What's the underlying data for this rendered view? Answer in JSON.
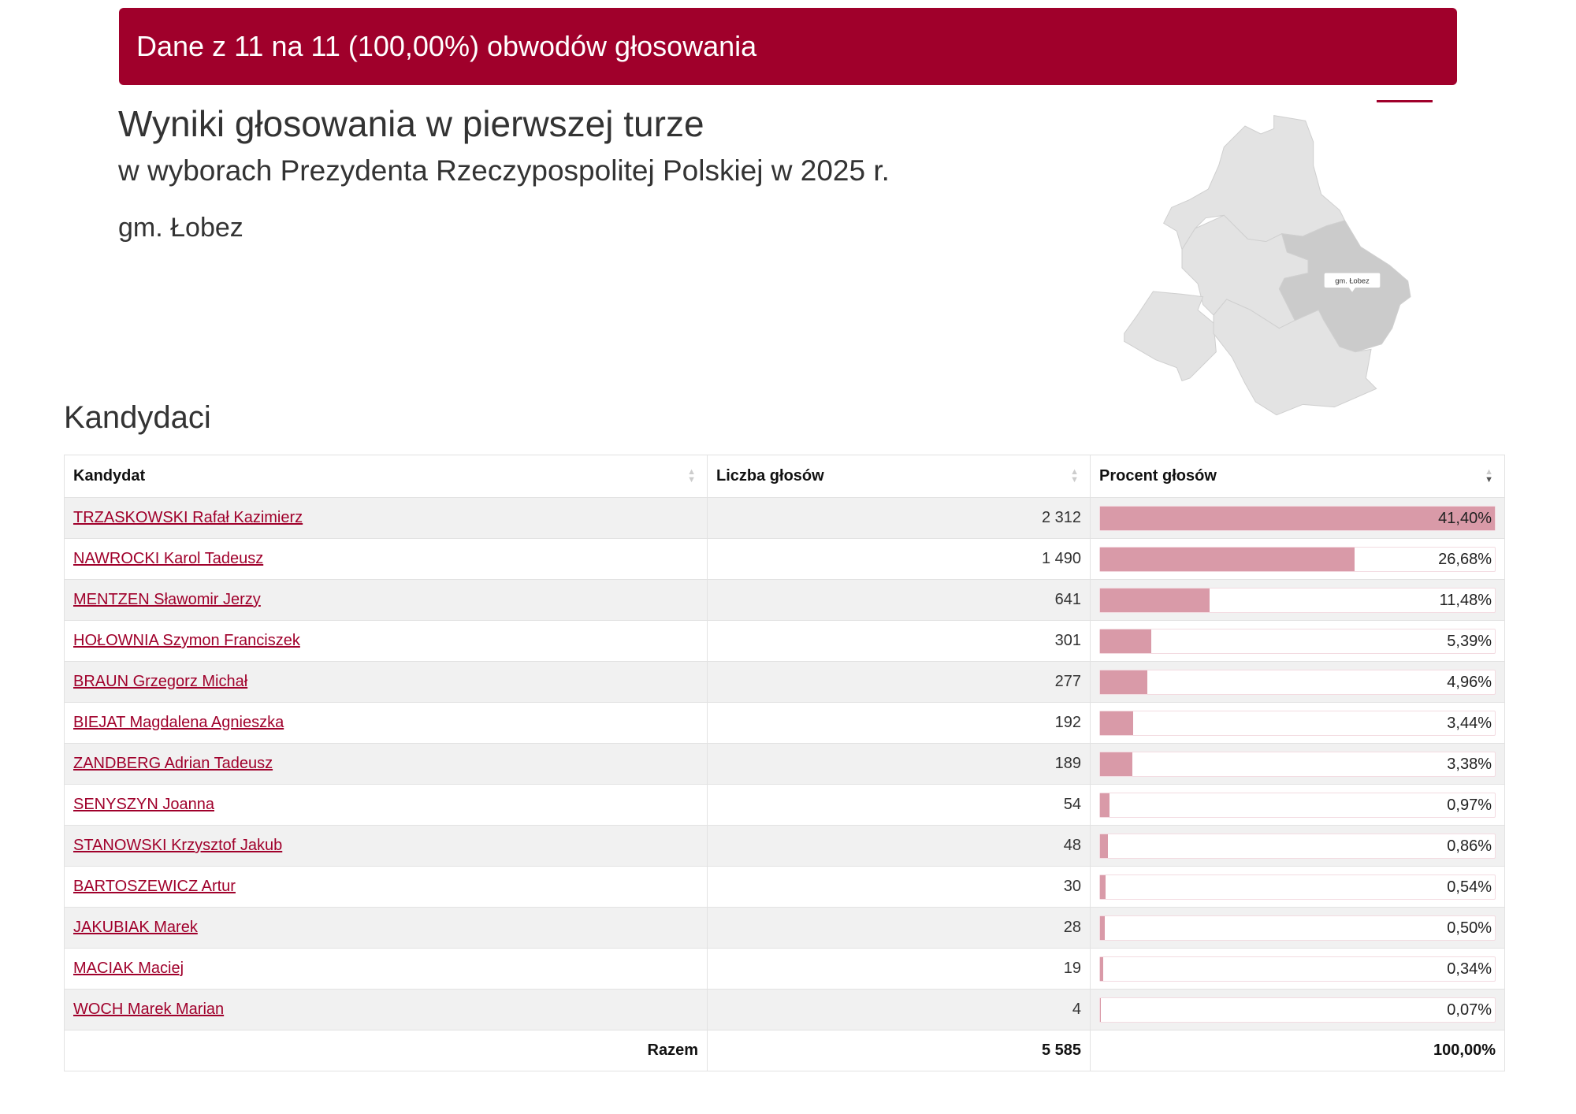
{
  "banner": {
    "text": "Dane z 11 na 11 (100,00%) obwodów głosowania",
    "color": "#a0002b"
  },
  "header": {
    "title": "Wyniki głosowania w pierwszej turze",
    "subtitle": "w wyborach Prezydenta Rzeczypospolitej Polskiej w 2025 r.",
    "area": "gm. Łobez"
  },
  "map": {
    "tooltip": "gm. Łobez",
    "highlighted": "gm. Łobez"
  },
  "section_title": "Kandydaci",
  "table": {
    "columns": [
      "Kandydat",
      "Liczba głosów",
      "Procent głosów"
    ],
    "sorted_column": "Procent głosów",
    "sort_direction": "descending",
    "rows": [
      {
        "name": "TRZASKOWSKI Rafał Kazimierz",
        "votes": "2 312",
        "percent": "41,40%",
        "pct": 41.4
      },
      {
        "name": "NAWROCKI Karol Tadeusz",
        "votes": "1 490",
        "percent": "26,68%",
        "pct": 26.68
      },
      {
        "name": "MENTZEN Sławomir Jerzy",
        "votes": "641",
        "percent": "11,48%",
        "pct": 11.48
      },
      {
        "name": "HOŁOWNIA Szymon Franciszek",
        "votes": "301",
        "percent": "5,39%",
        "pct": 5.39
      },
      {
        "name": "BRAUN Grzegorz Michał",
        "votes": "277",
        "percent": "4,96%",
        "pct": 4.96
      },
      {
        "name": "BIEJAT Magdalena Agnieszka",
        "votes": "192",
        "percent": "3,44%",
        "pct": 3.44
      },
      {
        "name": "ZANDBERG Adrian Tadeusz",
        "votes": "189",
        "percent": "3,38%",
        "pct": 3.38
      },
      {
        "name": "SENYSZYN Joanna",
        "votes": "54",
        "percent": "0,97%",
        "pct": 0.97
      },
      {
        "name": "STANOWSKI Krzysztof Jakub",
        "votes": "48",
        "percent": "0,86%",
        "pct": 0.86
      },
      {
        "name": "BARTOSZEWICZ Artur",
        "votes": "30",
        "percent": "0,54%",
        "pct": 0.54
      },
      {
        "name": "JAKUBIAK Marek",
        "votes": "28",
        "percent": "0,50%",
        "pct": 0.5
      },
      {
        "name": "MACIAK Maciej",
        "votes": "19",
        "percent": "0,34%",
        "pct": 0.34
      },
      {
        "name": "WOCH Marek Marian",
        "votes": "4",
        "percent": "0,07%",
        "pct": 0.07
      }
    ],
    "total": {
      "label": "Razem",
      "votes": "5 585",
      "percent": "100,00%"
    },
    "bar_color": "#d99aa8"
  }
}
